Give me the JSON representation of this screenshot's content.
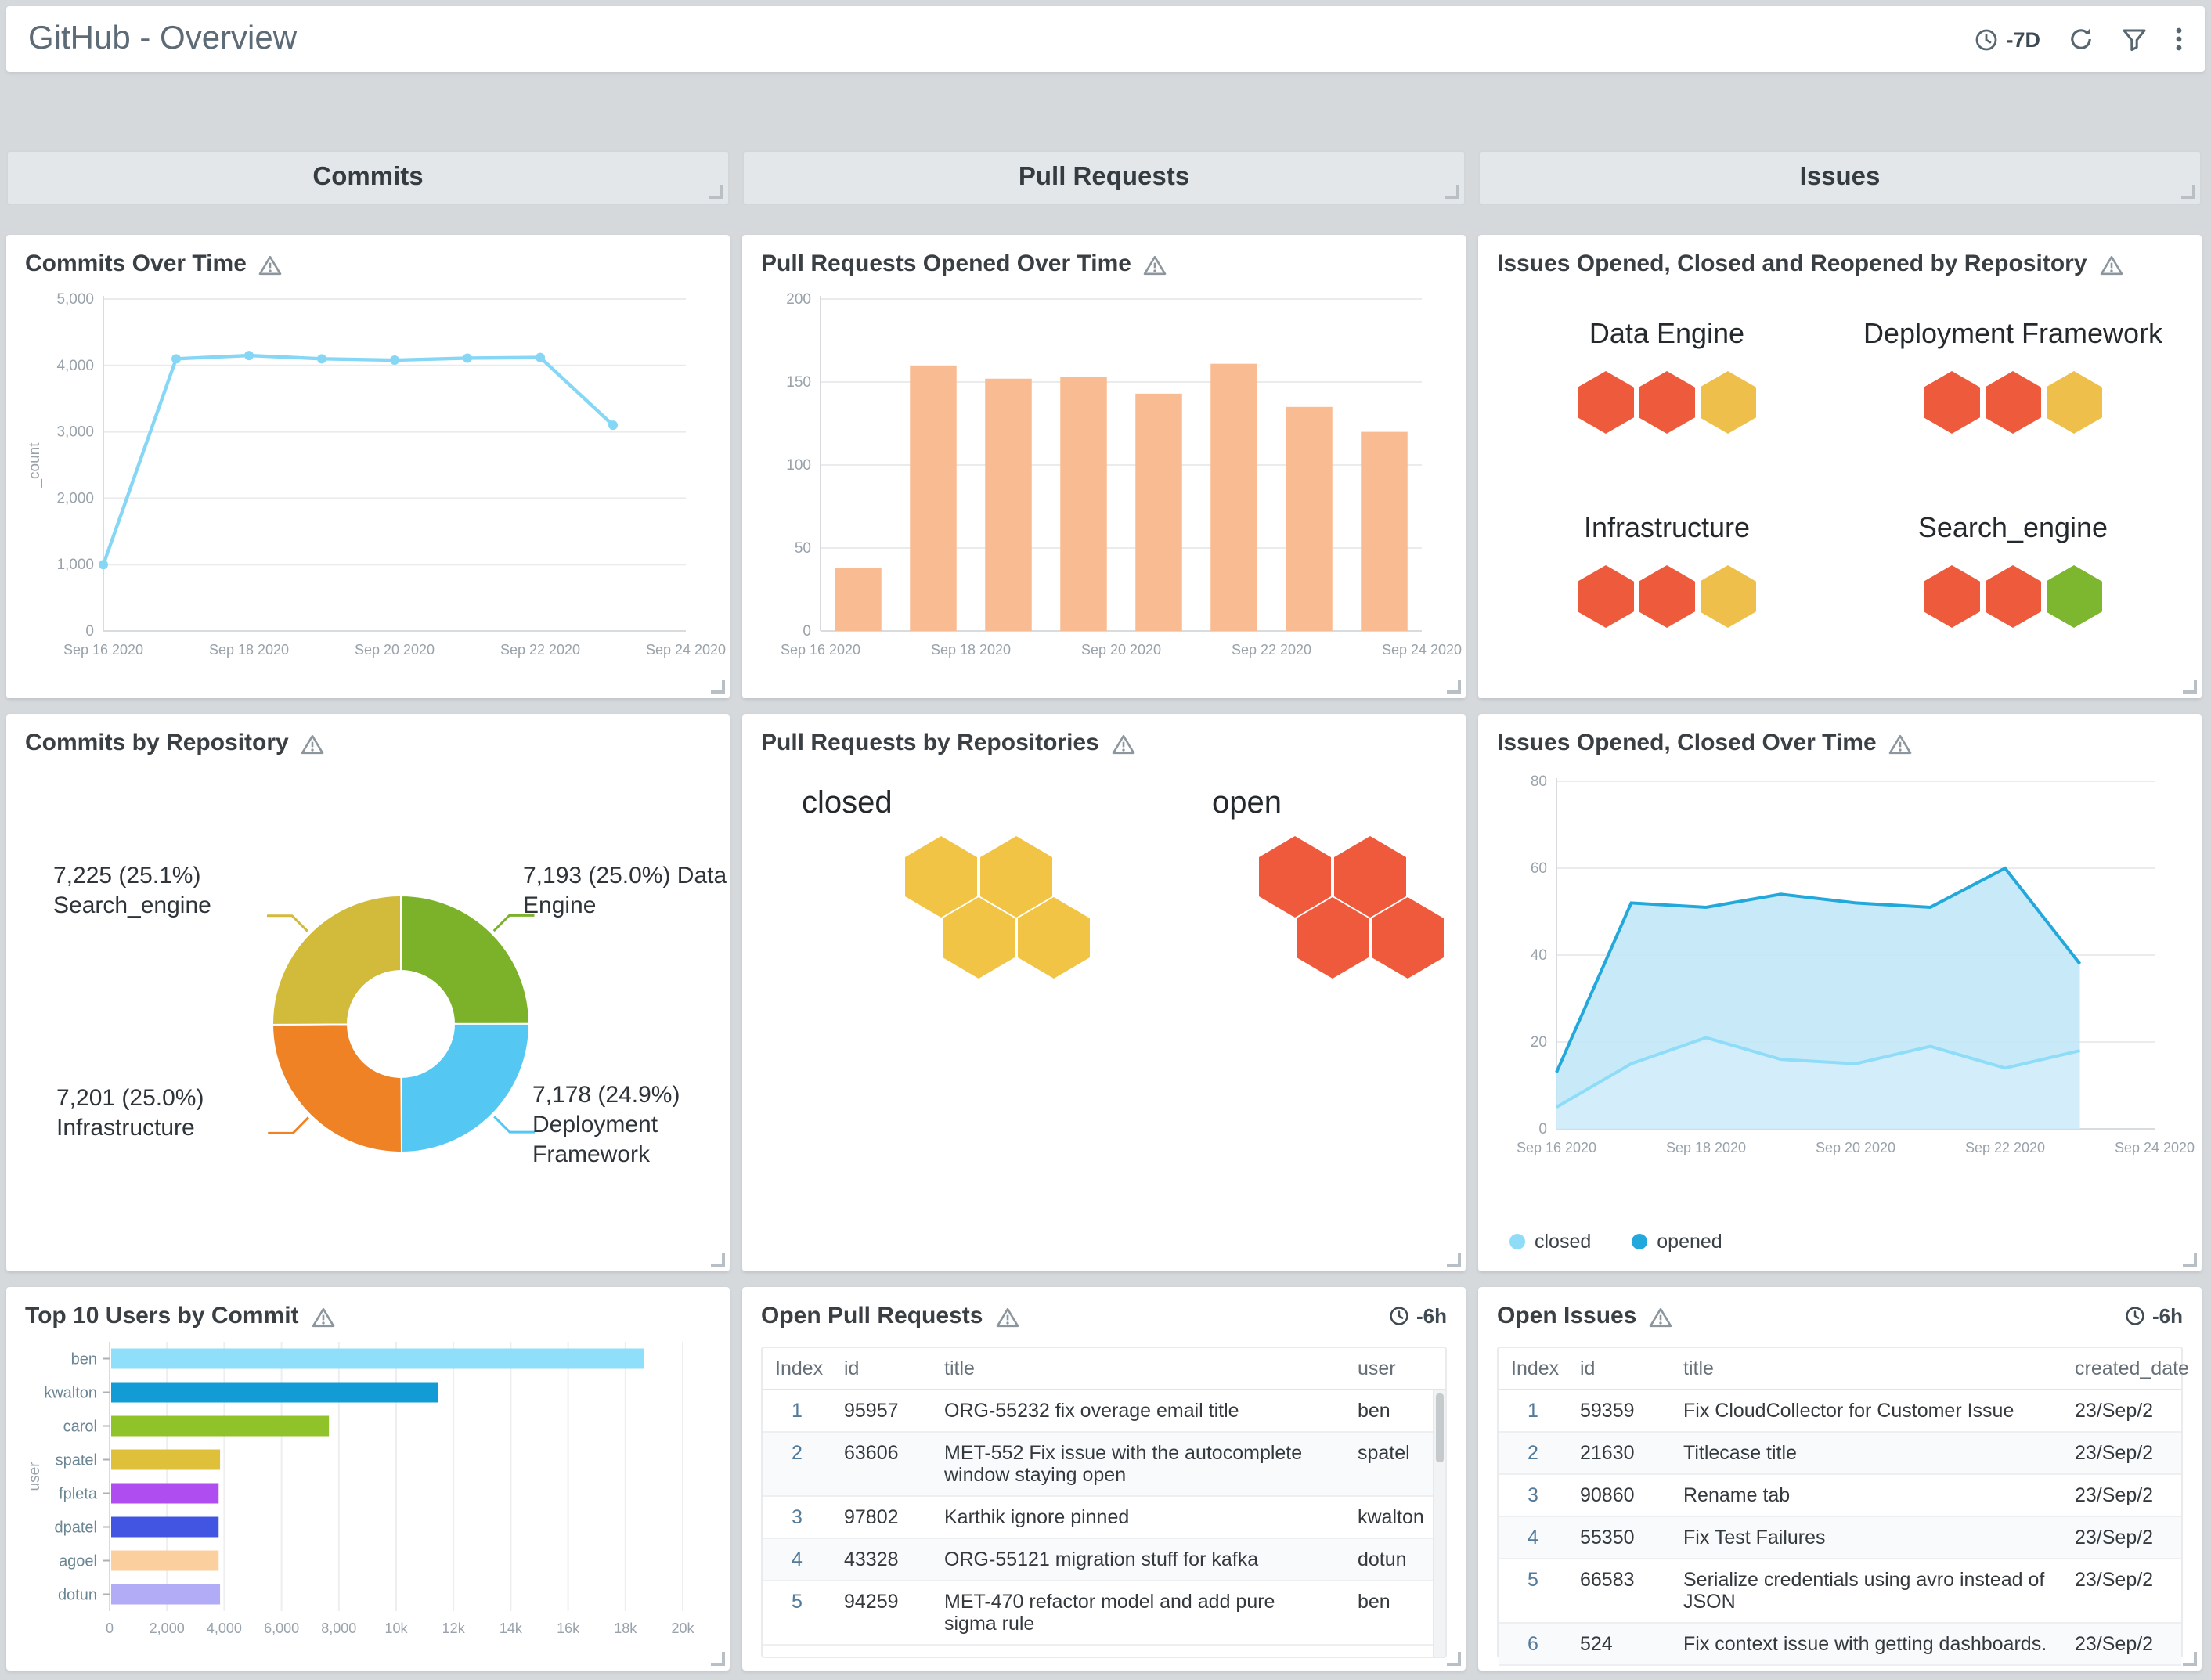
{
  "header": {
    "title": "GitHub - Overview",
    "time_range": "-7D"
  },
  "section_headers": [
    "Commits",
    "Pull Requests",
    "Issues"
  ],
  "panels": {
    "commits_over_time": {
      "title": "Commits Over Time"
    },
    "pr_over_time": {
      "title": "Pull Requests Opened Over Time"
    },
    "issues_by_repo": {
      "title": "Issues Opened, Closed and Reopened by Repository",
      "groups": [
        {
          "label": "Data Engine",
          "hex_colors": [
            "#ee5b3c",
            "#ee5b3c",
            "#eec04b"
          ]
        },
        {
          "label": "Deployment Framework",
          "hex_colors": [
            "#ee5b3c",
            "#ee5b3c",
            "#eec04b"
          ]
        },
        {
          "label": "Infrastructure",
          "hex_colors": [
            "#ee5b3c",
            "#ee5b3c",
            "#eec04b"
          ]
        },
        {
          "label": "Search_engine",
          "hex_colors": [
            "#ee5b3c",
            "#ee5b3c",
            "#7cb72f"
          ]
        }
      ]
    },
    "commits_by_repo": {
      "title": "Commits by Repository"
    },
    "pr_by_repo": {
      "title": "Pull Requests by Repositories",
      "clusters": [
        {
          "label": "closed",
          "color": "#f1c445",
          "count": 4
        },
        {
          "label": "open",
          "color": "#ef5a3d",
          "count": 4
        }
      ]
    },
    "issues_over_time": {
      "title": "Issues Opened, Closed Over Time"
    },
    "top_users": {
      "title": "Top 10 Users by Commit"
    },
    "open_prs": {
      "title": "Open Pull Requests",
      "time_offset": "-6h",
      "columns": [
        "Index",
        "id",
        "title",
        "user"
      ],
      "rows": [
        [
          "1",
          "95957",
          "ORG-55232 fix overage email title",
          "ben"
        ],
        [
          "2",
          "63606",
          "MET-552 Fix issue with the autocomplete window staying open",
          "spatel"
        ],
        [
          "3",
          "97802",
          "Karthik ignore pinned",
          "kwalton"
        ],
        [
          "4",
          "43328",
          "ORG-55121 migration stuff for kafka",
          "dotun"
        ],
        [
          "5",
          "94259",
          "MET-470 refactor model and add pure sigma rule",
          "ben"
        ]
      ]
    },
    "open_issues": {
      "title": "Open Issues",
      "time_offset": "-6h",
      "columns": [
        "Index",
        "id",
        "title",
        "created_date"
      ],
      "rows": [
        [
          "1",
          "59359",
          "Fix CloudCollector for Customer Issue",
          "23/Sep/2"
        ],
        [
          "2",
          "21630",
          "Titlecase title",
          "23/Sep/2"
        ],
        [
          "3",
          "90860",
          "Rename tab",
          "23/Sep/2"
        ],
        [
          "4",
          "55350",
          "Fix Test Failures",
          "23/Sep/2"
        ],
        [
          "5",
          "66583",
          "Serialize credentials using avro instead of JSON",
          "23/Sep/2"
        ],
        [
          "6",
          "524",
          "Fix context issue with getting dashboards.",
          "23/Sep/2"
        ]
      ]
    }
  },
  "chart_data": [
    {
      "id": "commits_over_time",
      "type": "line",
      "title": "Commits Over Time",
      "ylabel": "_count",
      "ylim": [
        0,
        5000
      ],
      "yticks": [
        {
          "v": 0,
          "label": "0"
        },
        {
          "v": 1000,
          "label": "1,000"
        },
        {
          "v": 2000,
          "label": "2,000"
        },
        {
          "v": 3000,
          "label": "3,000"
        },
        {
          "v": 4000,
          "label": "4,000"
        },
        {
          "v": 5000,
          "label": "5,000"
        }
      ],
      "x_domain": [
        0,
        8
      ],
      "x_ticks": [
        {
          "pos": 0,
          "label": "Sep 16 2020"
        },
        {
          "pos": 2,
          "label": "Sep 18 2020"
        },
        {
          "pos": 4,
          "label": "Sep 20 2020"
        },
        {
          "pos": 6,
          "label": "Sep 22 2020"
        },
        {
          "pos": 8,
          "label": "Sep 24 2020"
        }
      ],
      "series": [
        {
          "name": "_count",
          "color": "#86d7f5",
          "marker": true,
          "values": [
            1000,
            4100,
            4150,
            4100,
            4080,
            4110,
            4120,
            3100
          ]
        }
      ]
    },
    {
      "id": "pr_opened_over_time",
      "type": "bar",
      "title": "Pull Requests Opened Over Time",
      "ylim": [
        0,
        200
      ],
      "yticks": [
        {
          "v": 0,
          "label": "0"
        },
        {
          "v": 50,
          "label": "50"
        },
        {
          "v": 100,
          "label": "100"
        },
        {
          "v": 150,
          "label": "150"
        },
        {
          "v": 200,
          "label": "200"
        }
      ],
      "x_domain": [
        0,
        8
      ],
      "x_ticks": [
        {
          "pos": 0,
          "label": "Sep 16 2020"
        },
        {
          "pos": 2,
          "label": "Sep 18 2020"
        },
        {
          "pos": 4,
          "label": "Sep 20 2020"
        },
        {
          "pos": 6,
          "label": "Sep 22 2020"
        },
        {
          "pos": 8,
          "label": "Sep 24 2020"
        }
      ],
      "bar_color": "#f9bc92",
      "values": [
        38,
        160,
        152,
        153,
        143,
        161,
        135,
        120
      ]
    },
    {
      "id": "issues_over_time",
      "type": "area",
      "title": "Issues Opened, Closed Over Time",
      "ylim": [
        0,
        80
      ],
      "yticks": [
        {
          "v": 0,
          "label": "0"
        },
        {
          "v": 20,
          "label": "20"
        },
        {
          "v": 40,
          "label": "40"
        },
        {
          "v": 60,
          "label": "60"
        },
        {
          "v": 80,
          "label": "80"
        }
      ],
      "x_domain": [
        0,
        8
      ],
      "x_ticks": [
        {
          "pos": 0,
          "label": "Sep 16 2020"
        },
        {
          "pos": 2,
          "label": "Sep 18 2020"
        },
        {
          "pos": 4,
          "label": "Sep 20 2020"
        },
        {
          "pos": 6,
          "label": "Sep 22 2020"
        },
        {
          "pos": 8,
          "label": "Sep 24 2020"
        }
      ],
      "series": [
        {
          "name": "opened",
          "color": "#23a8dc",
          "fill": "rgba(190,230,247,0.85)",
          "values": [
            13,
            52,
            51,
            54,
            52,
            51,
            60,
            38
          ]
        },
        {
          "name": "closed",
          "color": "#8edcf8",
          "fill": "rgba(222,242,251,0.5)",
          "values": [
            5,
            15,
            21,
            16,
            15,
            19,
            14,
            18
          ]
        }
      ],
      "legend": [
        {
          "label": "closed",
          "color": "#8edcf8"
        },
        {
          "label": "opened",
          "color": "#23a8dc"
        }
      ]
    },
    {
      "id": "commits_by_repo",
      "type": "pie",
      "title": "Commits by Repository",
      "slices": [
        {
          "label": "Data Engine",
          "value": 7193,
          "pct": "25.0%",
          "color": "#7cb22a",
          "annotation": [
            "7,193 (25.0%) Data",
            "Engine"
          ],
          "anchor": "tr"
        },
        {
          "label": "Deployment Framework",
          "value": 7178,
          "pct": "24.9%",
          "color": "#54c8f2",
          "annotation": [
            "7,178 (24.9%)",
            "Deployment",
            "Framework"
          ],
          "anchor": "br"
        },
        {
          "label": "Infrastructure",
          "value": 7201,
          "pct": "25.0%",
          "color": "#f08226",
          "annotation": [
            "7,201 (25.0%)",
            "Infrastructure"
          ],
          "anchor": "bl"
        },
        {
          "label": "Search_engine",
          "value": 7225,
          "pct": "25.1%",
          "color": "#d2ba3a",
          "annotation": [
            "7,225 (25.1%)",
            "Search_engine"
          ],
          "anchor": "tl"
        }
      ]
    },
    {
      "id": "top_users_by_commit",
      "type": "bar",
      "orientation": "horizontal",
      "title": "Top 10 Users by Commit",
      "ylabel": "user",
      "categories": [
        "ben",
        "kwalton",
        "carol",
        "spatel",
        "fpleta",
        "dpatel",
        "agoel",
        "dotun"
      ],
      "values": [
        18600,
        11400,
        7600,
        3800,
        3750,
        3750,
        3750,
        3800
      ],
      "colors": [
        "#8fdffb",
        "#129bd5",
        "#90c32a",
        "#dfc03a",
        "#b04df0",
        "#4154e2",
        "#fbcf9e",
        "#b2acf7"
      ],
      "xlim": [
        0,
        20000
      ],
      "x_ticks": [
        {
          "v": 0,
          "label": "0"
        },
        {
          "v": 2000,
          "label": "2,000"
        },
        {
          "v": 4000,
          "label": "4,000"
        },
        {
          "v": 6000,
          "label": "6,000"
        },
        {
          "v": 8000,
          "label": "8,000"
        },
        {
          "v": 10000,
          "label": "10k"
        },
        {
          "v": 12000,
          "label": "12k"
        },
        {
          "v": 14000,
          "label": "14k"
        },
        {
          "v": 16000,
          "label": "16k"
        },
        {
          "v": 18000,
          "label": "18k"
        },
        {
          "v": 20000,
          "label": "20k"
        }
      ]
    }
  ]
}
